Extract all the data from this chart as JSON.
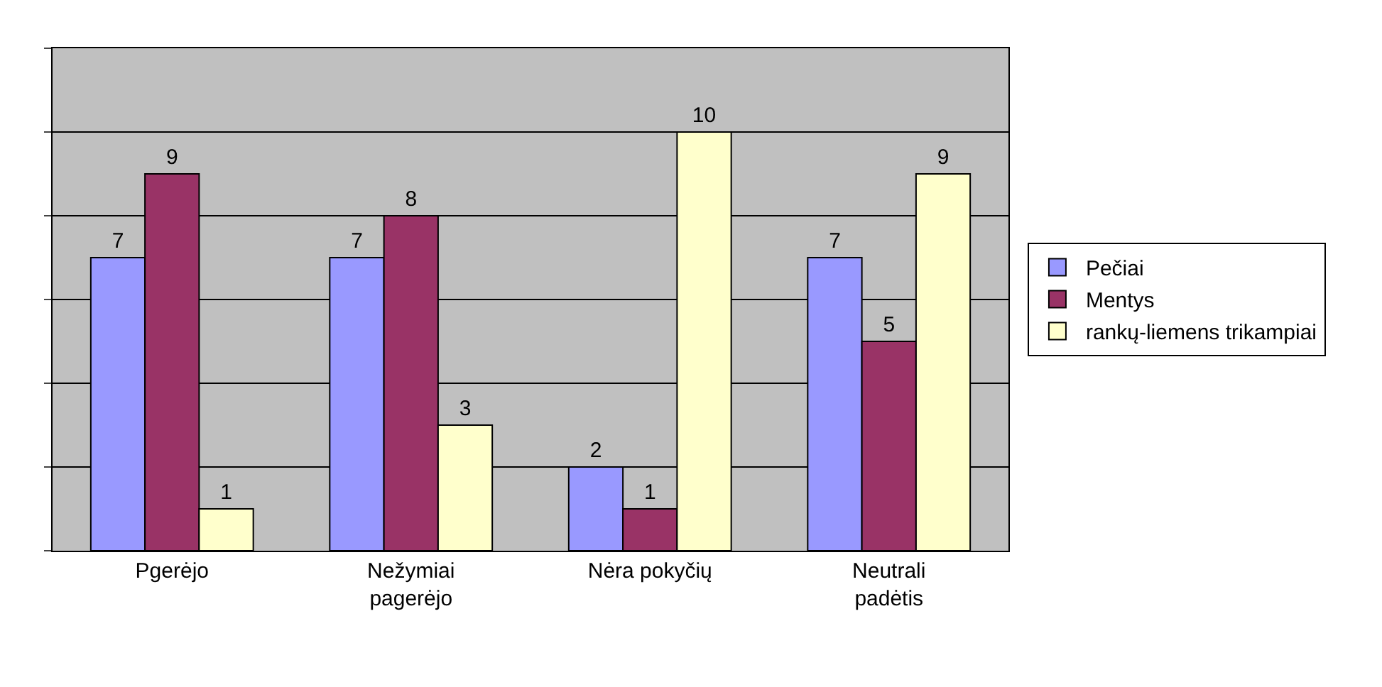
{
  "chart_data": {
    "type": "bar",
    "categories": [
      "Pgerėjo",
      "Nežymiai pagerėjo",
      "Nėra pokyčių",
      "Neutrali padėtis"
    ],
    "series": [
      {
        "name": "Pečiai",
        "color": "#9999ff",
        "values": [
          7,
          7,
          2,
          7
        ]
      },
      {
        "name": "Mentys",
        "color": "#993366",
        "values": [
          9,
          8,
          1,
          5
        ]
      },
      {
        "name": "rankų-liemens trikampiai",
        "color": "#ffffcc",
        "values": [
          1,
          3,
          10,
          9
        ]
      }
    ],
    "ylim": [
      0,
      12
    ],
    "yticks": [
      {
        "value": 0,
        "label": null
      },
      {
        "value": 2,
        "label": null
      },
      {
        "value": 4,
        "label": null
      },
      {
        "value": 6,
        "label": null
      },
      {
        "value": 8,
        "label": null
      },
      {
        "value": 10,
        "label": null
      },
      {
        "value": 12,
        "label": null
      }
    ],
    "tick_labels": "x",
    "grid": "y",
    "legend": "right",
    "data_labels": true
  }
}
